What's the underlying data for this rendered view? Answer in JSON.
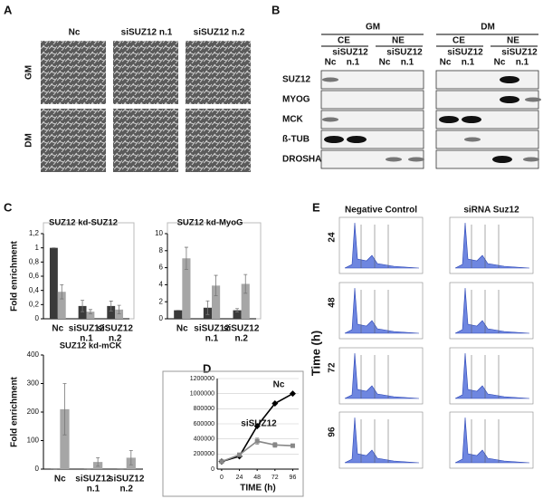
{
  "panel_labels": [
    "A",
    "B",
    "C",
    "D",
    "E"
  ],
  "panel_a": {
    "columns": [
      "Nc",
      "siSUZ12 n.1",
      "siSUZ12 n.2"
    ],
    "rows": [
      "GM",
      "DM"
    ]
  },
  "panel_b": {
    "groups": [
      {
        "label": "GM",
        "fractions": [
          "CE",
          "NE"
        ]
      },
      {
        "label": "DM",
        "fractions": [
          "CE",
          "NE"
        ]
      }
    ],
    "lanes": [
      "Nc",
      "siSUZ12",
      "n.1"
    ],
    "rows": [
      "SUZ12",
      "MYOG",
      "MCK",
      "ß-TUB",
      "DROSHA"
    ]
  },
  "panel_e": {
    "columns": [
      "Negative Control",
      "siRNA Suz12"
    ],
    "rows": [
      "24",
      "48",
      "72",
      "96"
    ],
    "row_axis_label": "Time (h)"
  },
  "chart_data": [
    {
      "type": "bar",
      "title": "SUZ12 kd-SUZ12",
      "ylabel": "Fold enrichment",
      "categories": [
        [
          "Nc"
        ],
        [
          "siSUZ12",
          "n.1"
        ],
        [
          "siSUZ12",
          "n.2"
        ]
      ],
      "series": [
        {
          "color": "#3a3a3a",
          "values": [
            1,
            0.18,
            0.18
          ],
          "errors": [
            0,
            0.08,
            0.07
          ]
        },
        {
          "color": "#a6a6a6",
          "values": [
            0.38,
            0.1,
            0.13
          ],
          "errors": [
            0.1,
            0.03,
            0.06
          ]
        }
      ],
      "ylim": [
        0,
        1.2
      ],
      "yticks": [
        0,
        {
          "value": 0.2,
          "label": "0,2"
        },
        {
          "value": 0.4,
          "label": "0,4"
        },
        {
          "value": 0.6,
          "label": "0,6"
        },
        {
          "value": 0.8,
          "label": "0,8"
        },
        1,
        {
          "value": 1.2,
          "label": "1,2"
        }
      ]
    },
    {
      "type": "bar",
      "title": "SUZ12 kd-MyoG",
      "categories": [
        [
          "Nc"
        ],
        [
          "siSUZ12",
          "n.1"
        ],
        [
          "siSUZ12",
          "n.2"
        ]
      ],
      "series": [
        {
          "color": "#3a3a3a",
          "values": [
            1,
            1.3,
            1
          ],
          "errors": [
            0,
            0.8,
            0.2
          ]
        },
        {
          "color": "#a6a6a6",
          "values": [
            7.1,
            3.9,
            4.1
          ],
          "errors": [
            1.3,
            1.2,
            1.1
          ]
        }
      ],
      "ylim": [
        0,
        10
      ],
      "yticks": [
        0,
        2,
        4,
        6,
        8,
        10
      ]
    },
    {
      "type": "bar",
      "title": "SUZ12 kd-mCK",
      "ylabel": "Fold enrichment",
      "categories": [
        [
          "Nc"
        ],
        [
          "siSUZ12",
          "n.1"
        ],
        [
          "siSUZ12",
          "n.2"
        ]
      ],
      "series": [
        {
          "color": "#3a3a3a",
          "values": [
            1,
            1,
            1
          ],
          "errors": [
            0,
            0,
            0
          ]
        },
        {
          "color": "#a6a6a6",
          "values": [
            210,
            25,
            40
          ],
          "errors": [
            90,
            15,
            25
          ]
        }
      ],
      "ylim": [
        0,
        400
      ],
      "yticks": [
        0,
        100,
        200,
        300,
        400
      ]
    },
    {
      "type": "line",
      "xlabel": "TIME (h)",
      "x": [
        0,
        24,
        48,
        72,
        96
      ],
      "xlim": [
        -6,
        104
      ],
      "xticks": [
        0,
        24,
        48,
        72,
        96
      ],
      "ylim": [
        0,
        1200000
      ],
      "yticks": [
        0,
        200000,
        400000,
        600000,
        800000,
        1000000,
        1200000
      ],
      "grid": true,
      "series": [
        {
          "name": "Nc",
          "color": "#000000",
          "marker": "diamond",
          "values": [
            100000,
            170000,
            570000,
            870000,
            1000000
          ]
        },
        {
          "name": "siSUZ12",
          "color": "#888888",
          "marker": "square",
          "values": [
            100000,
            190000,
            370000,
            320000,
            310000
          ],
          "errors": [
            0,
            10000,
            40000,
            30000,
            20000
          ]
        }
      ]
    }
  ]
}
